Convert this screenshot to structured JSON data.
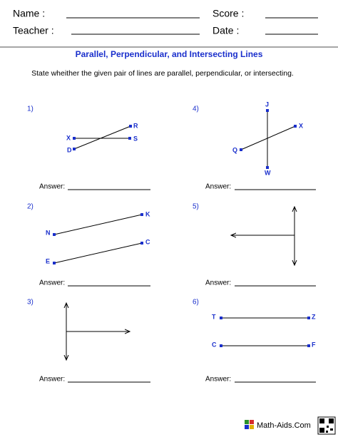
{
  "header": {
    "fields": [
      {
        "label": "Name :"
      },
      {
        "label": "Score :"
      },
      {
        "label": "Teacher :"
      },
      {
        "label": "Date :"
      }
    ]
  },
  "title": "Parallel, Perpendicular, and Intersecting Lines",
  "instructions": "State wheither the given pair of lines are parallel, perpendicular, or intersecting.",
  "problems": [
    {
      "number": "1)",
      "answer_label": "Answer:",
      "points": [
        "R",
        "S",
        "X",
        "D"
      ]
    },
    {
      "number": "2)",
      "answer_label": "Answer:",
      "points": [
        "K",
        "N",
        "C",
        "E"
      ]
    },
    {
      "number": "3)",
      "answer_label": "Answer:"
    },
    {
      "number": "4)",
      "answer_label": "Answer:",
      "points": [
        "J",
        "X",
        "Q",
        "W"
      ]
    },
    {
      "number": "5)",
      "answer_label": "Answer:"
    },
    {
      "number": "6)",
      "answer_label": "Answer:",
      "points": [
        "T",
        "Z",
        "C",
        "F"
      ]
    }
  ],
  "footer": "Math-Aids.Com"
}
